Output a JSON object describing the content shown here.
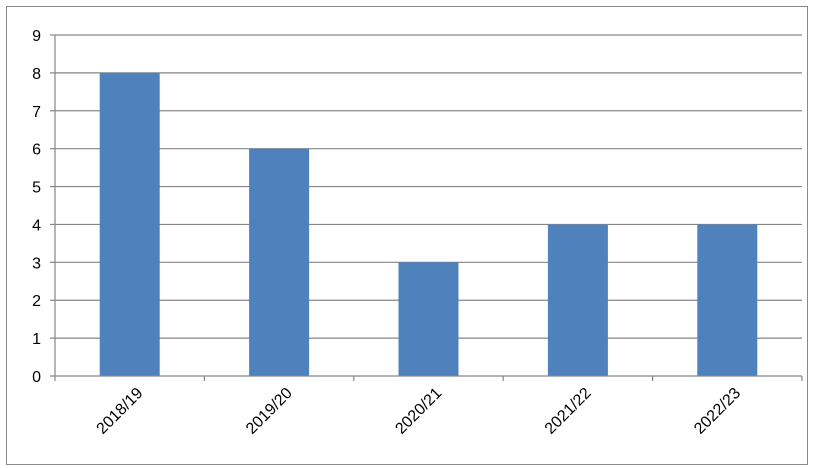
{
  "chart_data": {
    "type": "bar",
    "categories": [
      "2018/19",
      "2019/20",
      "2020/21",
      "2021/22",
      "2022/23"
    ],
    "values": [
      8,
      6,
      3,
      4,
      4
    ],
    "title": "",
    "xlabel": "",
    "ylabel": "",
    "ylim": [
      0,
      9
    ],
    "yticks": [
      0,
      1,
      2,
      3,
      4,
      5,
      6,
      7,
      8,
      9
    ],
    "grid": true,
    "legend": "none",
    "bar_color": "#4f81bd",
    "grid_color": "#868686"
  }
}
